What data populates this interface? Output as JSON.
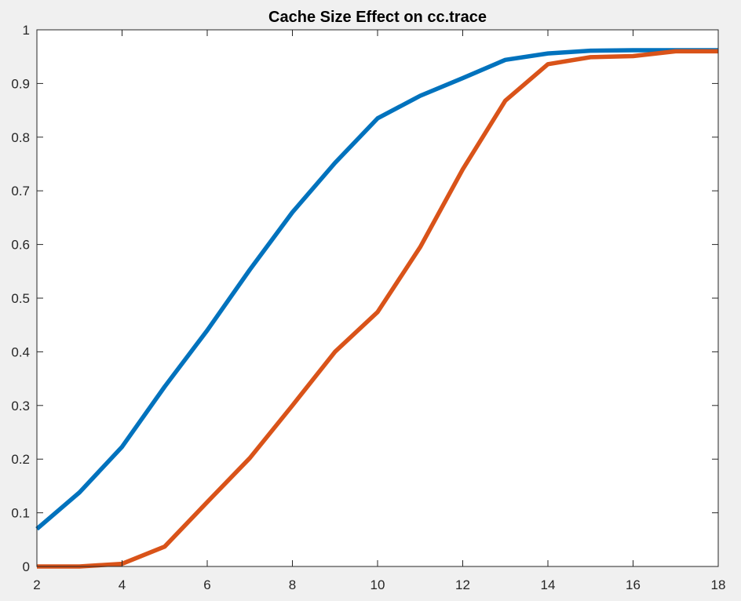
{
  "chart_data": {
    "type": "line",
    "title": "Cache Size Effect on cc.trace",
    "xlabel": "",
    "ylabel": "",
    "xlim": [
      2,
      18
    ],
    "ylim": [
      0,
      1
    ],
    "xticks": [
      2,
      4,
      6,
      8,
      10,
      12,
      14,
      16,
      18
    ],
    "yticks": [
      0,
      0.1,
      0.2,
      0.3,
      0.4,
      0.5,
      0.6,
      0.7,
      0.8,
      0.9,
      1
    ],
    "grid": false,
    "legend": false,
    "x": [
      2,
      3,
      4,
      5,
      6,
      7,
      8,
      9,
      10,
      11,
      12,
      13,
      14,
      15,
      16,
      17,
      18
    ],
    "series": [
      {
        "color": "#0072BD",
        "values": [
          0.07,
          0.138,
          0.223,
          0.335,
          0.44,
          0.553,
          0.66,
          0.752,
          0.835,
          0.877,
          0.91,
          0.944,
          0.956,
          0.961,
          0.962,
          0.962,
          0.962
        ]
      },
      {
        "color": "#D95319",
        "values": [
          0.0,
          0.0,
          0.005,
          0.037,
          0.12,
          0.202,
          0.3,
          0.4,
          0.474,
          0.595,
          0.74,
          0.868,
          0.936,
          0.949,
          0.951,
          0.96,
          0.96
        ]
      }
    ]
  }
}
